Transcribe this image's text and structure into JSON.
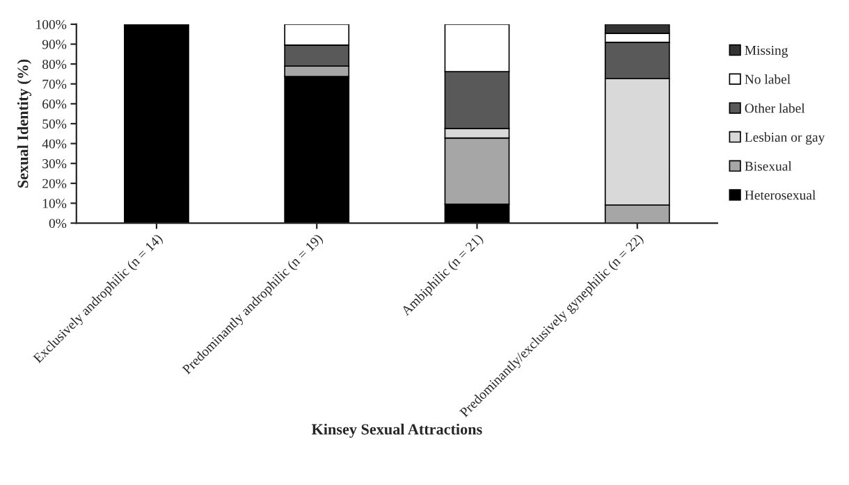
{
  "chart_data": {
    "type": "bar",
    "stacked": true,
    "xlabel": "Kinsey Sexual Attractions",
    "ylabel": "Sexual Identity (%)",
    "categories": [
      "Exclusively androphilic (n = 14)",
      "Predominantly androphilic (n = 19)",
      "Ambiphilic (n = 21)",
      "Predominantly/exclusively gynephilic (n = 22)"
    ],
    "series": [
      {
        "name": "Heterosexual",
        "color": "#000000",
        "values": [
          100,
          73.7,
          9.5,
          0
        ]
      },
      {
        "name": "Bisexual",
        "color": "#a6a6a6",
        "values": [
          0,
          5.3,
          33.3,
          9.1
        ]
      },
      {
        "name": "Lesbian or gay",
        "color": "#d9d9d9",
        "values": [
          0,
          0,
          4.8,
          63.6
        ]
      },
      {
        "name": "Other label",
        "color": "#595959",
        "values": [
          0,
          10.5,
          28.6,
          18.2
        ]
      },
      {
        "name": "No label",
        "color": "#ffffff",
        "values": [
          0,
          10.5,
          23.8,
          4.5
        ]
      },
      {
        "name": "Missing",
        "color": "#333333",
        "values": [
          0,
          0,
          0,
          4.6
        ]
      }
    ],
    "ylim": [
      0,
      100
    ],
    "yticks": [
      {
        "value": 0,
        "label": "0%"
      },
      {
        "value": 10,
        "label": "10%"
      },
      {
        "value": 20,
        "label": "20%"
      },
      {
        "value": 30,
        "label": "30%"
      },
      {
        "value": 40,
        "label": "40%"
      },
      {
        "value": 50,
        "label": "50%"
      },
      {
        "value": 60,
        "label": "60%"
      },
      {
        "value": 70,
        "label": "70%"
      },
      {
        "value": 80,
        "label": "80%"
      },
      {
        "value": 90,
        "label": "90%"
      },
      {
        "value": 100,
        "label": "100%"
      }
    ],
    "legend": "right",
    "grid": false
  }
}
